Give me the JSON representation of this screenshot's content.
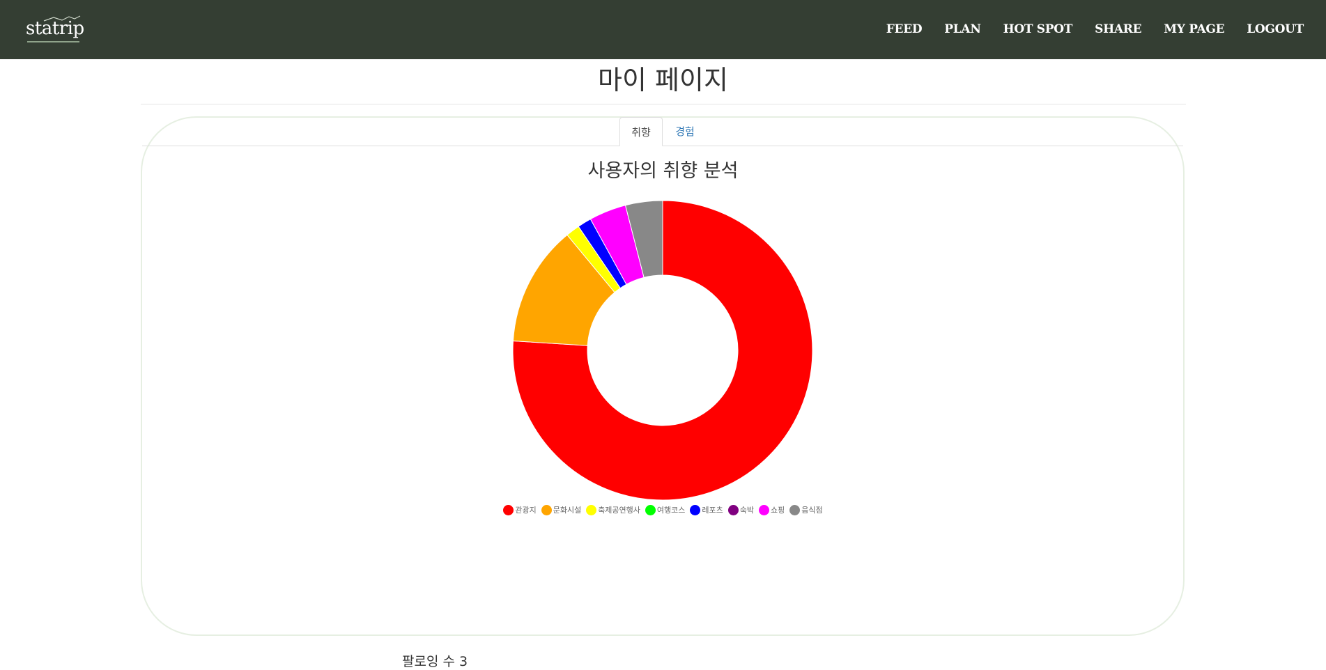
{
  "header": {
    "logo": "statrip",
    "nav": [
      "FEED",
      "PLAN",
      "HOT SPOT",
      "SHARE",
      "MY PAGE",
      "LOGOUT"
    ]
  },
  "page": {
    "title": "마이 페이지"
  },
  "tabs": [
    {
      "label": "취향",
      "active": true
    },
    {
      "label": "경험",
      "active": false
    }
  ],
  "chart_title": "사용자의 취향 분석",
  "chart_data": {
    "type": "pie",
    "donut": true,
    "title": "사용자의 취향 분석",
    "categories": [
      "관광지",
      "문화시설",
      "축제공연행사",
      "여행코스",
      "레포츠",
      "숙박",
      "쇼핑",
      "음식점"
    ],
    "values": [
      76,
      13,
      1.5,
      0,
      1.5,
      0,
      4,
      4
    ],
    "colors": [
      "#ff0000",
      "#ffa500",
      "#ffff00",
      "#00ff00",
      "#0000ff",
      "#800080",
      "#ff00ff",
      "#888888"
    ],
    "legend_position": "bottom"
  },
  "footer": {
    "following": "팔로잉 수 3"
  }
}
